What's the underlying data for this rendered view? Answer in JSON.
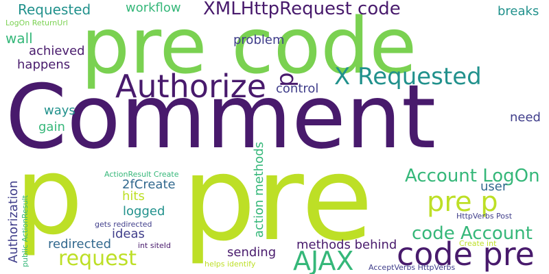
{
  "palette": {
    "background": "#ffffff",
    "dark_purple": "#481a6c",
    "indigo": "#3f3d8a",
    "blue": "#31688e",
    "teal": "#21918c",
    "green": "#35b779",
    "lime": "#7ad151",
    "yellow": "#bddf26"
  },
  "words": [
    {
      "text": "Comment"
    },
    {
      "text": "pre"
    },
    {
      "text": "p"
    },
    {
      "text": "pre code"
    },
    {
      "text": "Authorize"
    },
    {
      "text": "X Requested"
    },
    {
      "text": "XMLHttpRequest code"
    },
    {
      "text": "Requested"
    },
    {
      "text": "workflow"
    },
    {
      "text": "breaks"
    },
    {
      "text": "LogOn ReturnUrl"
    },
    {
      "text": "wall"
    },
    {
      "text": "achieved"
    },
    {
      "text": "happens"
    },
    {
      "text": "problem"
    },
    {
      "text": "p"
    },
    {
      "text": "control"
    },
    {
      "text": "ways"
    },
    {
      "text": "gain"
    },
    {
      "text": "need"
    },
    {
      "text": "Account LogOn"
    },
    {
      "text": "user"
    },
    {
      "text": "pre p"
    },
    {
      "text": "2fCreate"
    },
    {
      "text": "hits"
    },
    {
      "text": "logged"
    },
    {
      "text": "ideas"
    },
    {
      "text": "code Account"
    },
    {
      "text": "code pre"
    },
    {
      "text": "redirected"
    },
    {
      "text": "request"
    },
    {
      "text": "AJAX"
    },
    {
      "text": "sending"
    },
    {
      "text": "methods behind"
    },
    {
      "text": "Authorization"
    },
    {
      "text": "action methods"
    },
    {
      "text": "public ActionResult"
    },
    {
      "text": "ActionResult Create"
    },
    {
      "text": "gets redirected"
    },
    {
      "text": "int siteId"
    },
    {
      "text": "helps identify"
    },
    {
      "text": "AcceptVerbs HttpVerbs"
    },
    {
      "text": "HttpVerbs Post"
    },
    {
      "text": "Create int"
    }
  ]
}
